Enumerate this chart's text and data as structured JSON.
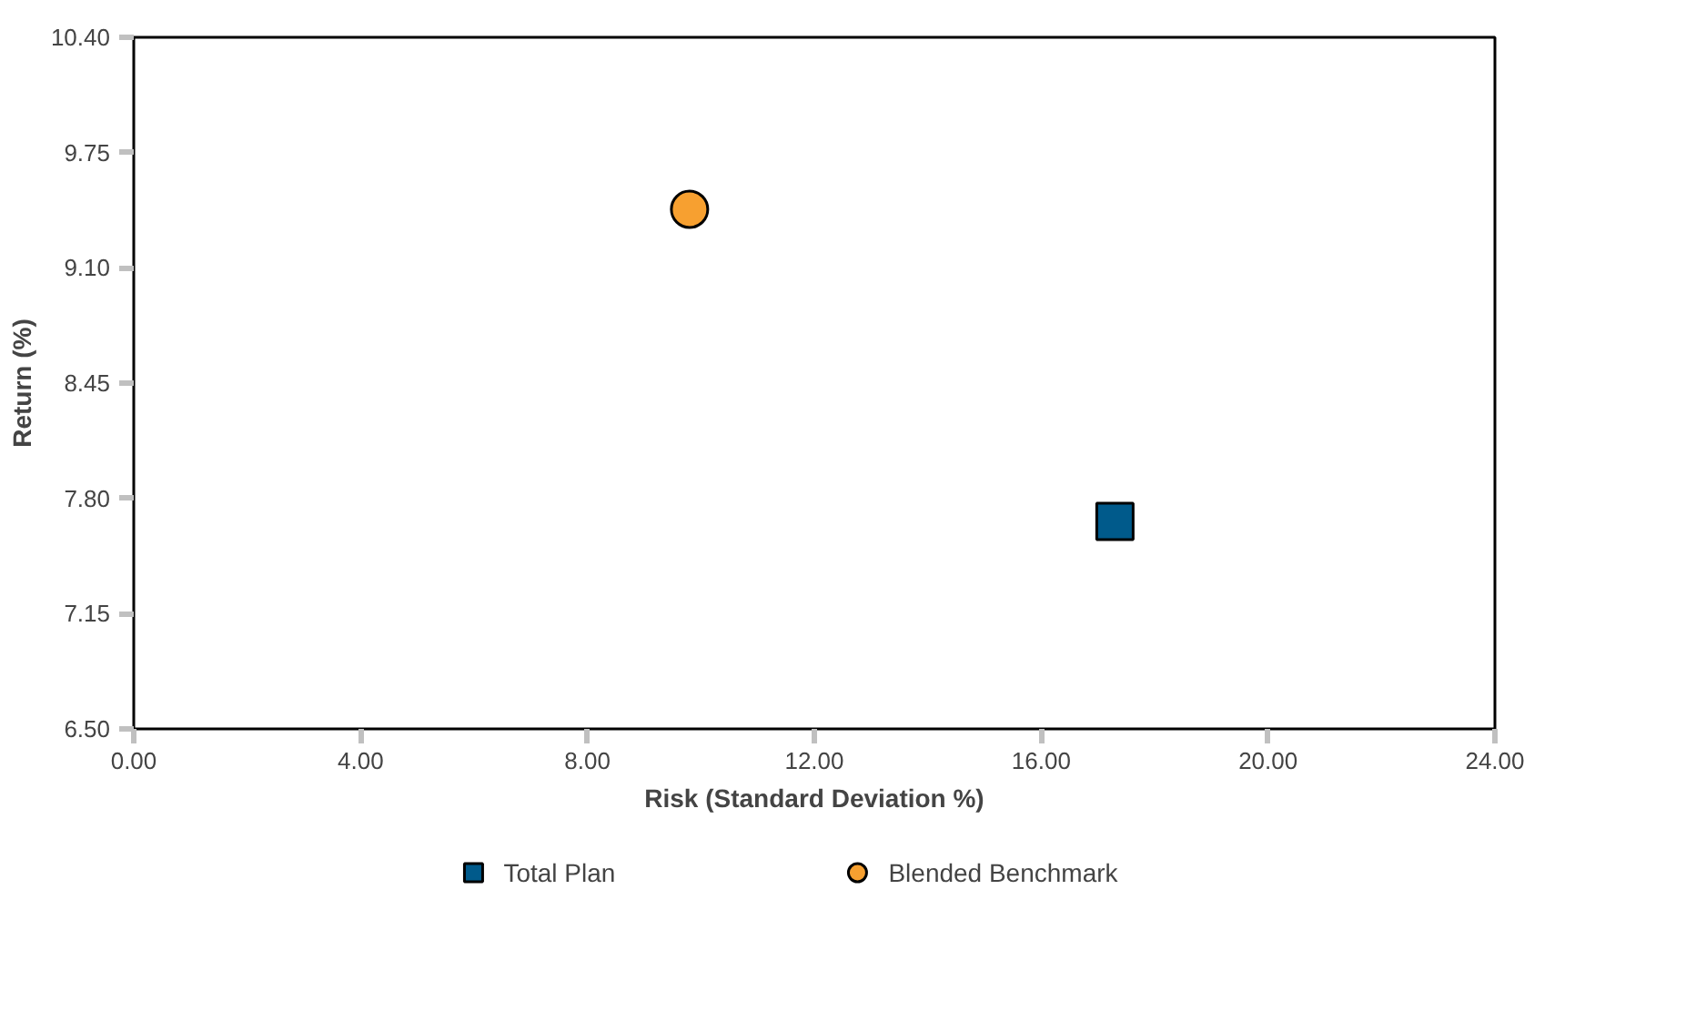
{
  "chart_data": {
    "type": "scatter",
    "xlabel": "Risk (Standard Deviation %)",
    "ylabel": "Return (%)",
    "xlim": [
      0,
      24
    ],
    "ylim": [
      6.5,
      10.4
    ],
    "xticks": [
      {
        "value": 0,
        "label": "0.00"
      },
      {
        "value": 4,
        "label": "4.00"
      },
      {
        "value": 8,
        "label": "8.00"
      },
      {
        "value": 12,
        "label": "12.00"
      },
      {
        "value": 16,
        "label": "16.00"
      },
      {
        "value": 20,
        "label": "20.00"
      },
      {
        "value": 24,
        "label": "24.00"
      }
    ],
    "yticks": [
      {
        "value": 6.5,
        "label": "6.50"
      },
      {
        "value": 7.15,
        "label": "7.15"
      },
      {
        "value": 7.8,
        "label": "7.80"
      },
      {
        "value": 8.45,
        "label": "8.45"
      },
      {
        "value": 9.1,
        "label": "9.10"
      },
      {
        "value": 9.75,
        "label": "9.75"
      },
      {
        "value": 10.4,
        "label": "10.40"
      }
    ],
    "grid": false,
    "legend": "bottom",
    "series": [
      {
        "name": "Total Plan",
        "color": "#005a8b",
        "marker": "square",
        "x": [
          17.3
        ],
        "values": [
          7.67
        ]
      },
      {
        "name": "Blended Benchmark",
        "color": "#f7a030",
        "marker": "circle",
        "x": [
          9.8
        ],
        "values": [
          9.43
        ]
      }
    ]
  }
}
